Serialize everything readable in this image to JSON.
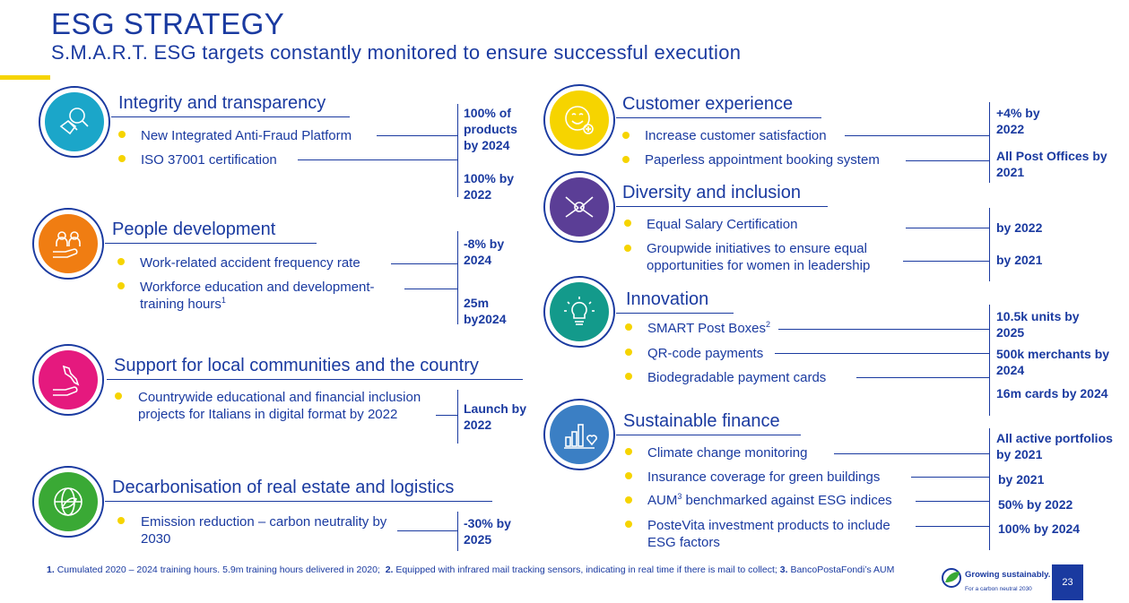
{
  "header": {
    "title": "ESG STRATEGY",
    "subtitle": "S.M.A.R.T. ESG targets constantly monitored to ensure successful execution"
  },
  "colors": {
    "accent_blue": "#1a3aa0",
    "accent_yellow": "#f6d400",
    "integrity": "#1ba6c9",
    "people": "#f07d12",
    "communities": "#e5197e",
    "decarbonisation": "#3aa935",
    "customer": "#f6d400",
    "diversity": "#5b3e96",
    "innovation": "#139a8b",
    "finance": "#3b7fc4"
  },
  "left": {
    "integrity": {
      "title": "Integrity and transparency",
      "icon": "handshake-magnifier-icon",
      "items": [
        "New Integrated Anti-Fraud Platform",
        "ISO 37001 certification"
      ],
      "targets": [
        "100% of products by 2024",
        "100% by 2022"
      ]
    },
    "people": {
      "title": "People development",
      "icon": "people-hand-icon",
      "items": [
        "Work-related accident frequency rate",
        "Workforce education and development-training hours"
      ],
      "item2_sup": "1",
      "targets": [
        "-8% by 2024",
        "25m by2024"
      ]
    },
    "communities": {
      "title": "Support for local communities and the country",
      "icon": "italy-hand-icon",
      "items": [
        "Countrywide educational and financial inclusion projects for Italians in digital format by 2022"
      ],
      "targets": [
        "Launch by 2022"
      ]
    },
    "decarbonisation": {
      "title": "Decarbonisation of real estate and logistics",
      "icon": "globe-leaf-icon",
      "items": [
        "Emission reduction – carbon neutrality by 2030"
      ],
      "targets": [
        "-30% by 2025"
      ]
    }
  },
  "right": {
    "customer": {
      "title": "Customer experience",
      "icon": "smiley-plus-icon",
      "items": [
        "Increase customer satisfaction",
        "Paperless appointment booking system"
      ],
      "targets": [
        "+4% by 2022",
        "All Post Offices by 2021"
      ]
    },
    "diversity": {
      "title": "Diversity and inclusion",
      "icon": "joined-hands-icon",
      "items": [
        "Equal Salary Certification",
        "Groupwide initiatives to ensure equal opportunities for women in leadership"
      ],
      "targets": [
        "by 2022",
        "by 2021"
      ]
    },
    "innovation": {
      "title": "Innovation",
      "icon": "lightbulb-icon",
      "items": [
        "SMART Post Boxes",
        "QR-code payments",
        "Biodegradable payment cards"
      ],
      "item1_sup": "2",
      "targets": [
        "10.5k units by 2025",
        "500k merchants by 2024",
        "16m cards by 2024"
      ]
    },
    "finance": {
      "title": "Sustainable finance",
      "icon": "chart-heart-icon",
      "items": [
        "Climate change monitoring",
        "Insurance coverage for green buildings",
        "benchmarked against ESG indices",
        "PosteVita investment products to include ESG factors"
      ],
      "item3_prefix": "AUM",
      "item3_sup": "3",
      "targets": [
        "All active portfolios by 2021",
        "by 2021",
        "50% by 2022",
        "100% by 2024"
      ]
    }
  },
  "footnote": {
    "n1_num": "1.",
    "n1_text": "Cumulated 2020 – 2024 training hours. 5.9m training hours delivered in 2020;",
    "n2_num": "2.",
    "n2_text": "Equipped with infrared mail tracking sensors, indicating in real time if there is mail to collect;",
    "n3_num": "3.",
    "n3_text": "BancoPostaFondi’s AUM"
  },
  "logo": {
    "line1": "Growing sustainably.",
    "line2": "For a carbon neutral 2030"
  },
  "page_number": "23"
}
